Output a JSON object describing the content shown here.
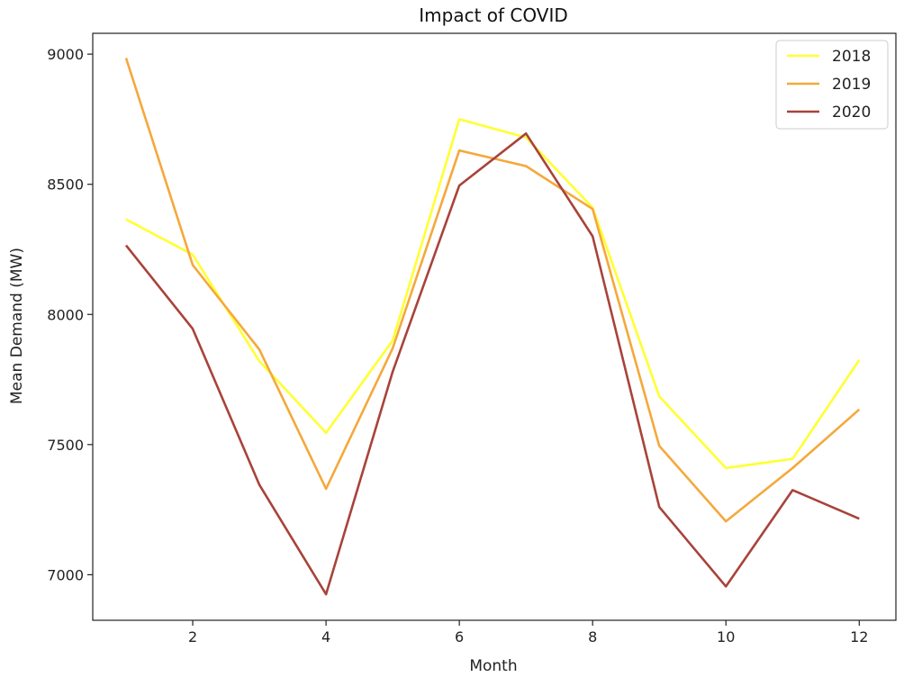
{
  "chart_data": {
    "type": "line",
    "title": "Impact of COVID",
    "xlabel": "Month",
    "ylabel": "Mean Demand (MW)",
    "x": [
      1,
      2,
      3,
      4,
      5,
      6,
      7,
      8,
      9,
      10,
      11,
      12
    ],
    "xticks": [
      2,
      4,
      6,
      8,
      10,
      12
    ],
    "yticks": [
      7000,
      7500,
      8000,
      8500,
      9000
    ],
    "xlim": [
      0.5,
      12.55
    ],
    "ylim": [
      6825,
      9080
    ],
    "grid": false,
    "legend_position": "top-right",
    "series": [
      {
        "name": "2018",
        "color": "#ffff33",
        "values": [
          8365,
          8230,
          7820,
          7545,
          7900,
          8750,
          8680,
          8410,
          7685,
          7410,
          7445,
          7825
        ]
      },
      {
        "name": "2019",
        "color": "#f5a83b",
        "values": [
          8985,
          8190,
          7865,
          7330,
          7870,
          8630,
          8570,
          8405,
          7495,
          7205,
          7410,
          7635
        ]
      },
      {
        "name": "2020",
        "color": "#a8433a",
        "values": [
          8265,
          7945,
          7345,
          6925,
          7780,
          8495,
          8695,
          8300,
          7260,
          6955,
          7325,
          7215
        ]
      }
    ]
  }
}
